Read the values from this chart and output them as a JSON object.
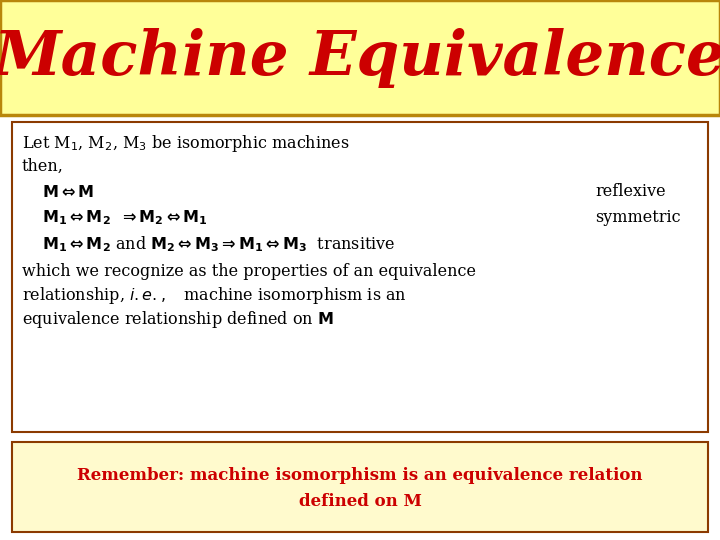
{
  "title": "Machine Equivalence",
  "title_color": "#cc0000",
  "title_bg": "#ffff99",
  "title_fontsize": 44,
  "overall_bg": "#ffffff",
  "title_border_color": "#b8860b",
  "body_bg": "#ffffff",
  "body_border_color": "#8b3a00",
  "remember_bg": "#fffacd",
  "remember_border_color": "#8b3a00",
  "remember_text_line1": "Remember: machine isomorphism is an equivalence relation",
  "remember_text_line2": "defined on M",
  "remember_color": "#cc0000",
  "remember_fontsize": 12,
  "body_fontsize": 11.5
}
